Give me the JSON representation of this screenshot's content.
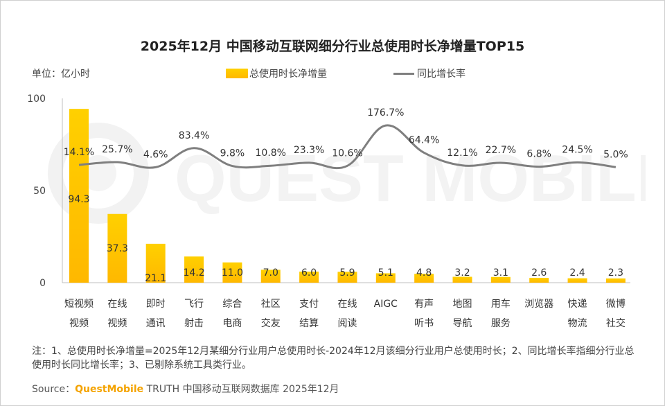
{
  "title": "2025年12月 中国移动互联网细分行业总使用时长净增量TOP15",
  "unit_label": "单位：亿小时",
  "legend": {
    "bar_label": "总使用时长净增量",
    "line_label": "同比增长率"
  },
  "watermark_text": "QUEST MOBILE",
  "colors": {
    "bar_top": "#ffd000",
    "bar_bottom": "#ffb800",
    "line": "#7f7f7f",
    "brand": "#f4a300"
  },
  "chart_data": {
    "type": "bar",
    "categories": [
      [
        "短视频",
        "视频"
      ],
      [
        "在线",
        "视频"
      ],
      [
        "即时",
        "通讯"
      ],
      [
        "飞行",
        "射击"
      ],
      [
        "综合",
        "电商"
      ],
      [
        "社区",
        "交友"
      ],
      [
        "支付",
        "结算"
      ],
      [
        "在线",
        "阅读"
      ],
      [
        "AIGC"
      ],
      [
        "有声",
        "听书"
      ],
      [
        "地图",
        "导航"
      ],
      [
        "用车",
        "服务"
      ],
      [
        "浏览器"
      ],
      [
        "快递",
        "物流"
      ],
      [
        "微博",
        "社交"
      ]
    ],
    "series": [
      {
        "name": "总使用时长净增量",
        "type": "bar",
        "values": [
          94.3,
          37.3,
          21.1,
          14.2,
          11.0,
          7.0,
          6.0,
          5.9,
          5.1,
          4.8,
          3.2,
          3.1,
          2.6,
          2.4,
          2.3
        ],
        "labels": [
          "94.3",
          "37.3",
          "21.1",
          "14.2",
          "11.0",
          "7.0",
          "6.0",
          "5.9",
          "5.1",
          "4.8",
          "3.2",
          "3.1",
          "2.6",
          "2.4",
          "2.3"
        ]
      },
      {
        "name": "同比增长率",
        "type": "line",
        "values": [
          14.1,
          25.7,
          4.6,
          83.4,
          9.8,
          10.8,
          23.3,
          10.6,
          176.7,
          64.4,
          12.1,
          22.7,
          6.8,
          24.5,
          5.0
        ],
        "labels": [
          "14.1%",
          "25.7%",
          "4.6%",
          "83.4%",
          "9.8%",
          "10.8%",
          "23.3%",
          "10.6%",
          "176.7%",
          "64.4%",
          "12.1%",
          "22.7%",
          "6.8%",
          "24.5%",
          "5.0%"
        ]
      }
    ],
    "yticks": [
      "0",
      "50",
      "100"
    ],
    "ylim": [
      0,
      100
    ],
    "grid": false,
    "legend_position": "top"
  },
  "note": "注：1、总使用时长净增量=2025年12月某细分行业用户总使用时长-2024年12月该细分行业用户总使用时长；2、同比增长率指细分行业总使用时长同比增长率；3、已剔除系统工具类行业。",
  "source": {
    "prefix": "Source：",
    "brand": "QuestMobile",
    "suffix": " TRUTH 中国移动互联网数据库 2025年12月"
  }
}
